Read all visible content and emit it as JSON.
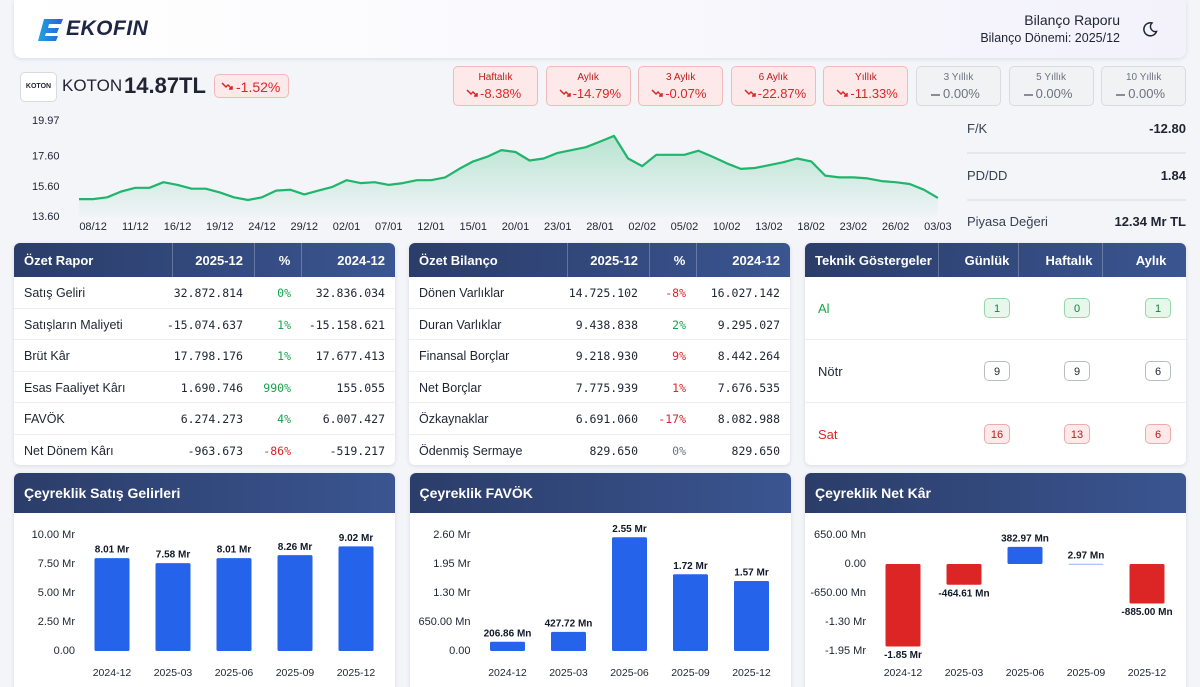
{
  "header": {
    "logo": "EKOFIN",
    "title": "Bilanço Raporu",
    "period": "Bilanço Dönemi: 2025/12"
  },
  "stock": {
    "logo": "KOTON",
    "name": "KOTON",
    "price": "14.87TL",
    "change": "-1.52%"
  },
  "returns": [
    {
      "label": "Haftalık",
      "value": "-8.38%",
      "tone": "down"
    },
    {
      "label": "Aylık",
      "value": "-14.79%",
      "tone": "down"
    },
    {
      "label": "3 Aylık",
      "value": "-0.07%",
      "tone": "down"
    },
    {
      "label": "6 Aylık",
      "value": "-22.87%",
      "tone": "down"
    },
    {
      "label": "Yıllık",
      "value": "-11.33%",
      "tone": "down"
    },
    {
      "label": "3 Yıllık",
      "value": "0.00%",
      "tone": "flat"
    },
    {
      "label": "5 Yıllık",
      "value": "0.00%",
      "tone": "flat"
    },
    {
      "label": "10 Yıllık",
      "value": "0.00%",
      "tone": "flat"
    }
  ],
  "metrics": [
    {
      "label": "F/K",
      "value": "-12.80"
    },
    {
      "label": "PD/DD",
      "value": "1.84"
    },
    {
      "label": "Piyasa Değeri",
      "value": "12.34 Mr TL"
    }
  ],
  "tables": [
    {
      "title": "Özet Rapor",
      "columns": [
        "2025-12",
        "%",
        "2024-12"
      ],
      "rows": [
        [
          "Satış Geliri",
          "32.872.814",
          "0%",
          "32.836.034"
        ],
        [
          "Satışların Maliyeti",
          "-15.074.637",
          "1%",
          "-15.158.621"
        ],
        [
          "Brüt Kâr",
          "17.798.176",
          "1%",
          "17.677.413"
        ],
        [
          "Esas Faaliyet Kârı",
          "1.690.746",
          "990%",
          "155.055"
        ],
        [
          "FAVÖK",
          "6.274.273",
          "4%",
          "6.007.427"
        ],
        [
          "Net Dönem Kârı",
          "-963.673",
          "-86%",
          "-519.217"
        ]
      ],
      "pct_tones": [
        "up",
        "up",
        "up",
        "up",
        "up",
        "down"
      ]
    },
    {
      "title": "Özet Bilanço",
      "columns": [
        "2025-12",
        "%",
        "2024-12"
      ],
      "rows": [
        [
          "Dönen Varlıklar",
          "14.725.102",
          "-8%",
          "16.027.142"
        ],
        [
          "Duran Varlıklar",
          "9.438.838",
          "2%",
          "9.295.027"
        ],
        [
          "Finansal Borçlar",
          "9.218.930",
          "9%",
          "8.442.264"
        ],
        [
          "Net Borçlar",
          "7.775.939",
          "1%",
          "7.676.535"
        ],
        [
          "Özkaynaklar",
          "6.691.060",
          "-17%",
          "8.082.988"
        ],
        [
          "Ödenmiş Sermaye",
          "829.650",
          "0%",
          "829.650"
        ]
      ],
      "pct_tones": [
        "down",
        "up",
        "down",
        "down",
        "down",
        "flat"
      ]
    }
  ],
  "signals": {
    "title": "Teknik Göstergeler",
    "columns": [
      "Günlük",
      "Haftalık",
      "Aylık"
    ],
    "rows": [
      {
        "label": "Al",
        "values": [
          "1",
          "0",
          "1"
        ],
        "tone": "buy"
      },
      {
        "label": "Nötr",
        "values": [
          "9",
          "9",
          "6"
        ],
        "tone": "neutral"
      },
      {
        "label": "Sat",
        "values": [
          "16",
          "13",
          "6"
        ],
        "tone": "sell"
      }
    ]
  },
  "chart_data": [
    {
      "type": "line",
      "color": "#1fb56b",
      "categories": [
        null,
        "08/12",
        null,
        null,
        "11/12",
        null,
        null,
        "16/12",
        null,
        null,
        "19/12",
        null,
        null,
        "24/12",
        null,
        null,
        "29/12",
        null,
        null,
        "02/01",
        null,
        null,
        "07/01",
        null,
        null,
        "12/01",
        null,
        null,
        "15/01",
        null,
        null,
        "20/01",
        null,
        null,
        "23/01",
        null,
        null,
        "28/01",
        null,
        null,
        "02/02",
        null,
        null,
        "05/02",
        null,
        null,
        "10/02",
        null,
        null,
        "13/02",
        null,
        null,
        "18/02",
        null,
        null,
        "23/02",
        null,
        null,
        "26/02",
        null,
        null,
        "03/03"
      ],
      "values": [
        14.79,
        14.79,
        14.91,
        15.29,
        15.54,
        15.54,
        15.91,
        15.73,
        15.48,
        15.48,
        15.23,
        14.91,
        14.73,
        14.91,
        15.35,
        15.41,
        15.1,
        15.35,
        15.6,
        16.04,
        15.85,
        15.91,
        15.73,
        15.85,
        16.04,
        16.04,
        16.23,
        16.79,
        17.29,
        17.6,
        18.04,
        17.91,
        17.35,
        17.48,
        17.85,
        18.04,
        18.23,
        18.6,
        18.98,
        17.48,
        16.98,
        17.73,
        17.73,
        17.73,
        18.0,
        17.6,
        17.16,
        16.79,
        16.85,
        17.04,
        17.23,
        17.48,
        17.29,
        16.35,
        16.23,
        16.23,
        16.16,
        15.98,
        15.91,
        15.79,
        15.41,
        14.87
      ],
      "ylim": [
        13.6,
        19.97
      ],
      "yticks": [
        {
          "value": 13.6,
          "label": "13.60"
        },
        {
          "value": 15.6,
          "label": "15.60"
        },
        {
          "value": 17.6,
          "label": "17.60"
        },
        19.97
      ]
    },
    {
      "type": "bar",
      "title": "Çeyreklik Satış Gelirleri",
      "color": "#2563eb",
      "categories": [
        "2024-12",
        "2025-03",
        "2025-06",
        "2025-09",
        "2025-12"
      ],
      "values": [
        8.01,
        7.58,
        8.01,
        8.26,
        9.02
      ],
      "value_labels": [
        "8.01 Mr",
        "7.58 Mr",
        "8.01 Mr",
        "8.26 Mr",
        "9.02 Mr"
      ],
      "ylim": [
        0,
        10
      ],
      "yticks": [
        {
          "value": 0,
          "label": "0.00"
        },
        {
          "value": 2.5,
          "label": "2.50 Mr"
        },
        {
          "value": 5,
          "label": "5.00 Mr"
        },
        {
          "value": 7.5,
          "label": "7.50 Mr"
        },
        {
          "value": 10,
          "label": "10.00 Mr"
        }
      ]
    },
    {
      "type": "bar",
      "title": "Çeyreklik FAVÖK",
      "color": "#2563eb",
      "categories": [
        "2024-12",
        "2025-03",
        "2025-06",
        "2025-09",
        "2025-12"
      ],
      "values": [
        0.20686,
        0.42772,
        2.55,
        1.72,
        1.57
      ],
      "value_labels": [
        "206.86 Mn",
        "427.72 Mn",
        "2.55 Mr",
        "1.72 Mr",
        "1.57 Mr"
      ],
      "ylim": [
        0,
        2.6
      ],
      "yticks": [
        {
          "value": 0,
          "label": "0.00"
        },
        {
          "value": 0.65,
          "label": "650.00 Mn"
        },
        {
          "value": 1.3,
          "label": "1.30 Mr"
        },
        {
          "value": 1.95,
          "label": "1.95 Mr"
        },
        {
          "value": 2.6,
          "label": "2.60 Mr"
        }
      ]
    },
    {
      "type": "bar",
      "title": "Çeyreklik Net Kâr",
      "color": "#2563eb",
      "negative_color": "#dc2626",
      "categories": [
        "2024-12",
        "2025-03",
        "2025-06",
        "2025-09",
        "2025-12"
      ],
      "values": [
        -1.85,
        -0.46461,
        0.38297,
        0.00297,
        -0.885
      ],
      "value_labels": [
        "-1.85 Mr",
        "-464.61 Mn",
        "382.97 Mn",
        "2.97 Mn",
        "-885.00 Mn"
      ],
      "ylim": [
        -1.95,
        0.65
      ],
      "yticks": [
        {
          "value": -1.95,
          "label": "-1.95 Mr"
        },
        {
          "value": -1.3,
          "label": "-1.30 Mr"
        },
        {
          "value": -0.65,
          "label": "-650.00 Mn"
        },
        {
          "value": 0,
          "label": "0.00"
        },
        {
          "value": 0.65,
          "label": "650.00 Mn"
        }
      ]
    }
  ]
}
